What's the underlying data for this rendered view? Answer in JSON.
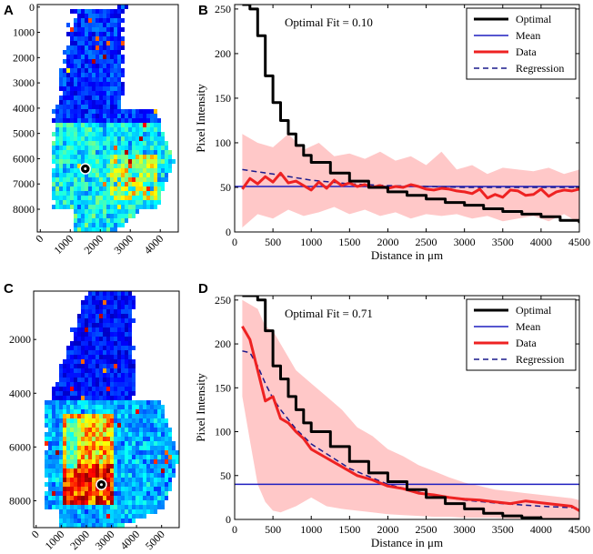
{
  "figure": {
    "panel_labels": [
      "A",
      "B",
      "C",
      "D"
    ]
  },
  "chart_data": [
    {
      "panel": "A",
      "type": "heatmap",
      "description": "Pixel-intensity heat map of a tissue section (jet colormap) with a marked point",
      "x_ticks": [
        0,
        1000,
        2000,
        3000,
        4000
      ],
      "y_ticks": [
        0,
        1000,
        2000,
        3000,
        4000,
        5000,
        6000,
        7000,
        8000
      ],
      "xlim": [
        -100,
        4600
      ],
      "ylim": [
        8900,
        -100
      ],
      "marker": {
        "x": 1500,
        "y": 6400
      }
    },
    {
      "panel": "B",
      "type": "line",
      "annotation": "Optimal Fit = 0.10",
      "xlabel": "Distance in μm",
      "ylabel": "Pixel Intensity",
      "xlim": [
        0,
        4500
      ],
      "ylim": [
        0,
        255
      ],
      "x_ticks": [
        0,
        500,
        1000,
        1500,
        2000,
        2500,
        3000,
        3500,
        4000,
        4500
      ],
      "y_ticks": [
        0,
        50,
        100,
        150,
        200,
        250
      ],
      "legend": [
        "Optimal",
        "Mean",
        "Data",
        "Regression"
      ],
      "series": [
        {
          "name": "Optimal",
          "color": "#000000",
          "x": [
            100,
            200,
            300,
            400,
            500,
            600,
            700,
            800,
            900,
            1000,
            1250,
            1500,
            1750,
            2000,
            2250,
            2500,
            2750,
            3000,
            3250,
            3500,
            3750,
            4000,
            4250,
            4500
          ],
          "values": [
            255,
            250,
            220,
            175,
            145,
            125,
            110,
            97,
            86,
            78,
            66,
            57,
            50,
            45,
            41,
            37,
            33,
            30,
            26,
            23,
            20,
            17,
            13,
            10
          ]
        },
        {
          "name": "Mean",
          "color": "#1f1fbf",
          "x": [
            0,
            4500
          ],
          "values": [
            51,
            51
          ]
        },
        {
          "name": "Data",
          "color": "#ee2222",
          "x": [
            100,
            200,
            300,
            400,
            500,
            600,
            700,
            800,
            900,
            1000,
            1100,
            1200,
            1300,
            1400,
            1500,
            1600,
            1700,
            1800,
            1900,
            2000,
            2100,
            2200,
            2300,
            2400,
            2500,
            2600,
            2700,
            2800,
            2900,
            3000,
            3100,
            3200,
            3300,
            3400,
            3500,
            3600,
            3700,
            3800,
            3900,
            4000,
            4100,
            4200,
            4300,
            4400,
            4500
          ],
          "values": [
            48,
            60,
            54,
            62,
            56,
            66,
            55,
            57,
            52,
            47,
            56,
            49,
            58,
            52,
            55,
            51,
            53,
            50,
            52,
            49,
            51,
            50,
            53,
            51,
            48,
            47,
            49,
            48,
            46,
            45,
            43,
            48,
            38,
            42,
            39,
            47,
            46,
            41,
            42,
            48,
            40,
            45,
            47,
            46,
            48
          ]
        },
        {
          "name": "Regression",
          "color": "#1a1a8c",
          "x": [
            100,
            500,
            1000,
            1500,
            2000,
            2500,
            3000,
            3500,
            4000,
            4500
          ],
          "values": [
            70,
            65,
            58,
            54,
            52,
            51,
            50,
            50,
            50,
            50
          ]
        }
      ],
      "band": {
        "name": "Data spread",
        "color": "#ffc8c8",
        "x": [
          100,
          300,
          500,
          700,
          900,
          1100,
          1300,
          1500,
          1700,
          1900,
          2100,
          2300,
          2500,
          2700,
          2900,
          3100,
          3300,
          3500,
          3700,
          3900,
          4100,
          4300,
          4500
        ],
        "upper": [
          110,
          100,
          95,
          110,
          92,
          100,
          85,
          88,
          82,
          90,
          80,
          85,
          75,
          90,
          70,
          75,
          65,
          72,
          70,
          68,
          72,
          65,
          70
        ],
        "lower": [
          5,
          20,
          15,
          25,
          18,
          22,
          28,
          20,
          25,
          18,
          22,
          15,
          20,
          18,
          20,
          15,
          18,
          12,
          15,
          18,
          12,
          20,
          10
        ]
      }
    },
    {
      "panel": "C",
      "type": "heatmap",
      "description": "Pixel-intensity heat map of a tissue section (jet colormap) with a marked point",
      "x_ticks": [
        0,
        1000,
        2000,
        3000,
        4000,
        5000
      ],
      "y_ticks": [
        2000,
        4000,
        6000,
        8000
      ],
      "xlim": [
        -100,
        5700
      ],
      "ylim": [
        9000,
        200
      ],
      "marker": {
        "x": 2600,
        "y": 7400
      }
    },
    {
      "panel": "D",
      "type": "line",
      "annotation": "Optimal Fit = 0.71",
      "xlabel": "Distance in μm",
      "ylabel": "Pixel Intensity",
      "xlim": [
        0,
        4500
      ],
      "ylim": [
        0,
        255
      ],
      "x_ticks": [
        0,
        500,
        1000,
        1500,
        2000,
        2500,
        3000,
        3500,
        4000,
        4500
      ],
      "y_ticks": [
        0,
        50,
        100,
        150,
        200,
        250
      ],
      "legend": [
        "Optimal",
        "Mean",
        "Data",
        "Regression"
      ],
      "series": [
        {
          "name": "Optimal",
          "color": "#000000",
          "x": [
            100,
            200,
            300,
            400,
            500,
            600,
            700,
            800,
            900,
            1000,
            1250,
            1500,
            1750,
            2000,
            2250,
            2500,
            2750,
            3000,
            3250,
            3500,
            3750,
            4000,
            4250,
            4500
          ],
          "values": [
            255,
            255,
            250,
            215,
            175,
            160,
            140,
            125,
            110,
            100,
            83,
            66,
            53,
            43,
            34,
            25,
            18,
            12,
            7,
            4,
            2,
            0,
            0,
            0
          ]
        },
        {
          "name": "Mean",
          "color": "#1f1fbf",
          "x": [
            0,
            4500
          ],
          "values": [
            40,
            40
          ]
        },
        {
          "name": "Data",
          "color": "#ee2222",
          "x": [
            100,
            200,
            300,
            400,
            500,
            600,
            700,
            800,
            900,
            1000,
            1200,
            1400,
            1600,
            1800,
            2000,
            2200,
            2400,
            2600,
            2800,
            3000,
            3200,
            3400,
            3600,
            3800,
            4000,
            4200,
            4400,
            4500
          ],
          "values": [
            220,
            205,
            170,
            135,
            140,
            115,
            110,
            100,
            92,
            80,
            70,
            60,
            50,
            45,
            38,
            35,
            30,
            28,
            25,
            23,
            22,
            20,
            18,
            21,
            19,
            17,
            15,
            10
          ]
        },
        {
          "name": "Regression",
          "color": "#1a1a8c",
          "x": [
            100,
            200,
            300,
            400,
            500,
            600,
            800,
            1000,
            1500,
            2000,
            2500,
            3000,
            3500,
            4000,
            4500
          ],
          "values": [
            192,
            190,
            175,
            155,
            138,
            125,
            103,
            86,
            58,
            40,
            29,
            22,
            18,
            15,
            13
          ]
        }
      ],
      "band": {
        "name": "Data spread",
        "color": "#ffc8c8",
        "x": [
          100,
          200,
          300,
          400,
          500,
          600,
          800,
          1000,
          1200,
          1400,
          1600,
          1800,
          2000,
          2200,
          2400,
          2600,
          2800,
          3000,
          3200,
          3400,
          3600,
          3800,
          4000,
          4200,
          4400,
          4500
        ],
        "upper": [
          250,
          245,
          240,
          220,
          215,
          200,
          170,
          155,
          140,
          125,
          105,
          95,
          80,
          72,
          62,
          55,
          48,
          42,
          38,
          34,
          32,
          30,
          28,
          26,
          24,
          22
        ],
        "lower": [
          140,
          90,
          40,
          20,
          10,
          8,
          15,
          25,
          15,
          12,
          10,
          8,
          6,
          5,
          4,
          3,
          3,
          2,
          2,
          2,
          1,
          1,
          1,
          1,
          0,
          0
        ]
      }
    }
  ]
}
